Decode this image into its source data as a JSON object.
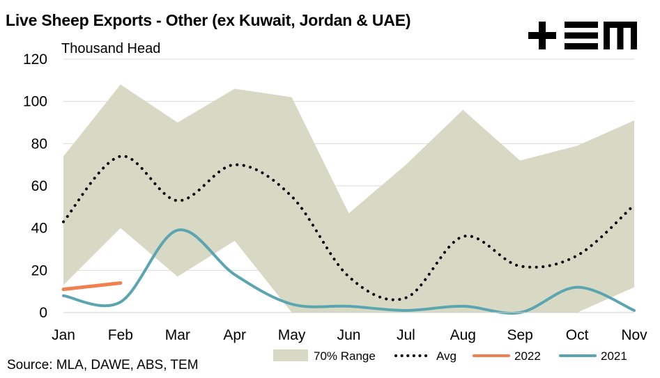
{
  "title": "Live Sheep Exports - Other (ex Kuwait, Jordan & UAE)",
  "source": "Source: MLA, DAWE, ABS, TEM",
  "logo": {
    "name": "tem-logo",
    "alt": "TEM"
  },
  "colors": {
    "range": "#d8d9c5",
    "avg": "#000000",
    "y2022": "#f08050",
    "y2021": "#5aa5b0",
    "grid": "#d9d9d9"
  },
  "chart_data": {
    "type": "line",
    "title": "Live Sheep Exports - Other (ex Kuwait, Jordan & UAE)",
    "ylabel": "Thousand Head",
    "xlabel": "",
    "ylim": [
      0,
      120
    ],
    "yticks": [
      0,
      20,
      40,
      60,
      80,
      100,
      120
    ],
    "grid": true,
    "legend_position": "bottom",
    "categories": [
      "Jan",
      "Feb",
      "Mar",
      "Apr",
      "May",
      "Jun",
      "Jul",
      "Aug",
      "Sep",
      "Oct",
      "Nov"
    ],
    "range_band": {
      "name": "70% Range",
      "upper": [
        74,
        108,
        90,
        106,
        102,
        47,
        70,
        96,
        72,
        79,
        91
      ],
      "lower": [
        13,
        40,
        17,
        34,
        0,
        0,
        0,
        0,
        0,
        0,
        12
      ]
    },
    "series": [
      {
        "name": "Avg",
        "style": "dotted",
        "values": [
          43,
          74,
          53,
          70,
          55,
          17,
          7,
          36,
          22,
          27,
          51
        ]
      },
      {
        "name": "2022",
        "style": "solid",
        "values": [
          11,
          14,
          null,
          null,
          null,
          null,
          null,
          null,
          null,
          null,
          null
        ]
      },
      {
        "name": "2021",
        "style": "solid",
        "values": [
          8,
          5,
          39,
          18,
          4,
          3,
          1,
          3,
          0,
          12,
          1
        ]
      }
    ]
  }
}
